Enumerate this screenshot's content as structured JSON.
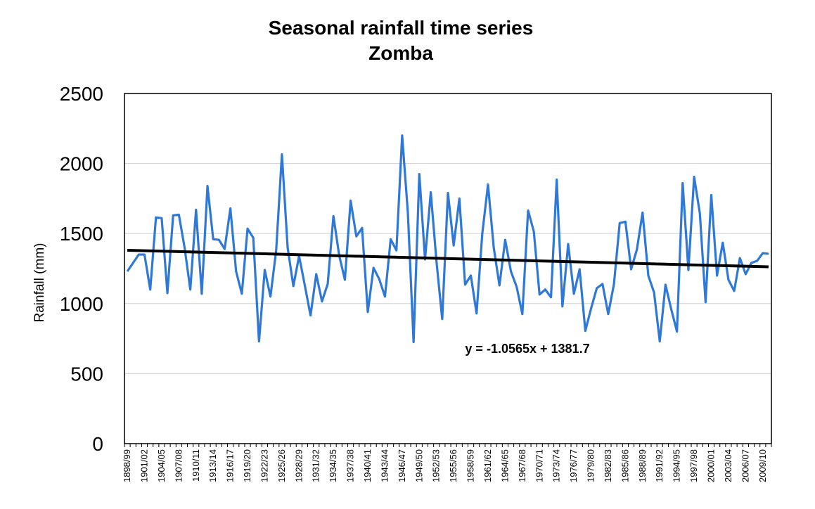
{
  "chart_data": {
    "type": "line",
    "title": "Seasonal rainfall time series",
    "subtitle": "Zomba",
    "xlabel": "",
    "ylabel": "Rainfall (mm)",
    "ylim": [
      0,
      2500
    ],
    "yticks": [
      0,
      500,
      1000,
      1500,
      2000,
      2500
    ],
    "grid": true,
    "x_tick_labels": [
      "1898/99",
      "1901/02",
      "1904/05",
      "1907/08",
      "1910/11",
      "1913/14",
      "1916/17",
      "1919/20",
      "1922/23",
      "1925/26",
      "1928/29",
      "1931/32",
      "1934/35",
      "1937/38",
      "1940/41",
      "1943/44",
      "1946/47",
      "1949/50",
      "1952/53",
      "1955/56",
      "1958/59",
      "1961/62",
      "1964/65",
      "1967/68",
      "1970/71",
      "1973/74",
      "1976/77",
      "1979/80",
      "1982/83",
      "1985/86",
      "1988/89",
      "1991/92",
      "1994/95",
      "1997/98",
      "2000/01",
      "2003/04",
      "2006/07",
      "2009/10"
    ],
    "series": [
      {
        "name": "",
        "color": "#2f78d6",
        "values": [
          1230,
          1290,
          1350,
          1350,
          1100,
          1615,
          1610,
          1075,
          1630,
          1635,
          1400,
          1100,
          1670,
          1070,
          1840,
          1460,
          1455,
          1390,
          1680,
          1230,
          1070,
          1535,
          1470,
          730,
          1240,
          1050,
          1380,
          2065,
          1400,
          1125,
          1340,
          1130,
          915,
          1210,
          1015,
          1140,
          1625,
          1345,
          1170,
          1735,
          1480,
          1540,
          940,
          1255,
          1175,
          1050,
          1460,
          1380,
          2200,
          1650,
          725,
          1925,
          1315,
          1795,
          1300,
          890,
          1790,
          1415,
          1750,
          1135,
          1200,
          930,
          1500,
          1850,
          1400,
          1130,
          1455,
          1230,
          1120,
          925,
          1665,
          1515,
          1065,
          1100,
          1045,
          1885,
          980,
          1425,
          1070,
          1245,
          805,
          965,
          1110,
          1140,
          925,
          1140,
          1575,
          1585,
          1245,
          1385,
          1650,
          1200,
          1080,
          730,
          1135,
          960,
          800,
          1860,
          1240,
          1905,
          1645,
          1010,
          1775,
          1200,
          1435,
          1170,
          1090,
          1325,
          1210,
          1290,
          1305,
          1360,
          1355
        ]
      },
      {
        "name": "Linear trend",
        "color": "#000000",
        "trend": {
          "slope": -1.0565,
          "intercept": 1381.7
        }
      }
    ],
    "annotation": "y = -1.0565x + 1381.7"
  }
}
